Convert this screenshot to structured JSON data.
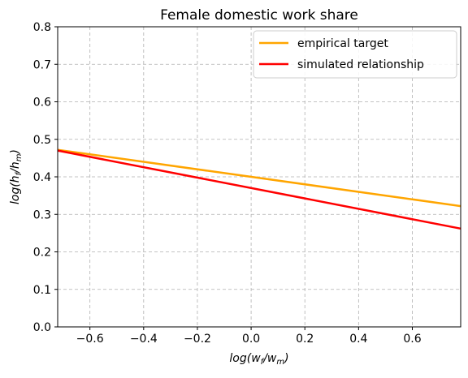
{
  "chart_data": {
    "type": "line",
    "title": "Female domestic work share",
    "xlabel": {
      "base": "log(w",
      "sub1": "f",
      "mid": "/w",
      "sub2": "m",
      "end": ")"
    },
    "ylabel": {
      "base": "log(h",
      "sub1": "f",
      "mid": "/h",
      "sub2": "m",
      "end": ")"
    },
    "xlim": [
      -0.72,
      0.78
    ],
    "ylim": [
      0,
      0.8
    ],
    "xticks": [
      -0.6,
      -0.4,
      -0.2,
      0.0,
      0.2,
      0.4,
      0.6
    ],
    "xtick_labels": [
      "−0.6",
      "−0.4",
      "−0.2",
      "0.0",
      "0.2",
      "0.4",
      "0.6"
    ],
    "yticks": [
      0.0,
      0.1,
      0.2,
      0.3,
      0.4,
      0.5,
      0.6,
      0.7,
      0.8
    ],
    "ytick_labels": [
      "0.0",
      "0.1",
      "0.2",
      "0.3",
      "0.4",
      "0.5",
      "0.6",
      "0.7",
      "0.8"
    ],
    "grid": true,
    "legend_position": "top-right",
    "series": [
      {
        "name": "empirical target",
        "color": "#ffa500",
        "x": [
          -0.72,
          0.78
        ],
        "y": [
          0.472,
          0.322
        ]
      },
      {
        "name": "simulated relationship",
        "color": "#ff0000",
        "x": [
          -0.72,
          0.78
        ],
        "y": [
          0.47,
          0.262
        ]
      }
    ]
  }
}
